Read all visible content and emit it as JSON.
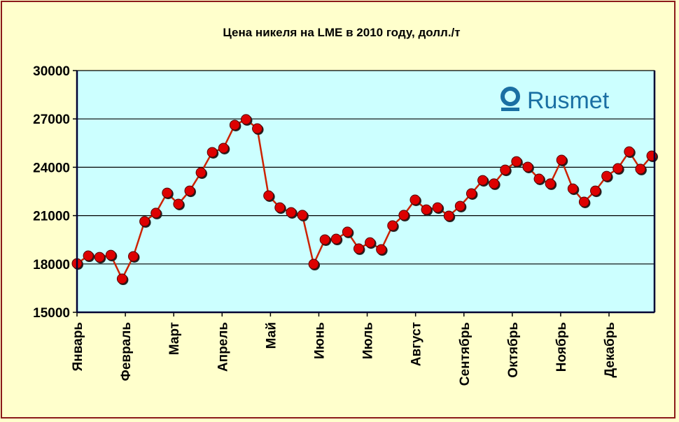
{
  "chart_data": {
    "type": "line",
    "title": "Цена никеля на LME в 2010 году, долл./т",
    "xlabel": "",
    "ylabel": "",
    "ylim": [
      15000,
      30000
    ],
    "yticks": [
      "15000",
      "18000",
      "21000",
      "24000",
      "27000",
      "30000"
    ],
    "grid": true,
    "months": [
      "Январь",
      "Февраль",
      "Март",
      "Апрель",
      "Май",
      "Июнь",
      "Июль",
      "Август",
      "Сентябрь",
      "Октябрь",
      "Ноябрь",
      "Декабрь"
    ],
    "series": [
      {
        "name": "Цена никеля",
        "values": [
          18030,
          18510,
          18420,
          18550,
          17080,
          18470,
          20640,
          21160,
          22410,
          21720,
          22540,
          23670,
          24930,
          25190,
          26620,
          26970,
          26400,
          22240,
          21500,
          21200,
          21030,
          17990,
          19510,
          19550,
          19990,
          18950,
          19330,
          18900,
          20380,
          21030,
          21980,
          21370,
          21500,
          20980,
          21590,
          22370,
          23190,
          22980,
          23840,
          24360,
          24020,
          23280,
          22980,
          24450,
          22670,
          21850,
          22540,
          23450,
          23930,
          24970,
          23890,
          24710
        ]
      }
    ],
    "line_color": "#cc2200",
    "marker_color": "#dd0000",
    "plot_bg": "#ccffff",
    "logo": "Rusmet"
  }
}
